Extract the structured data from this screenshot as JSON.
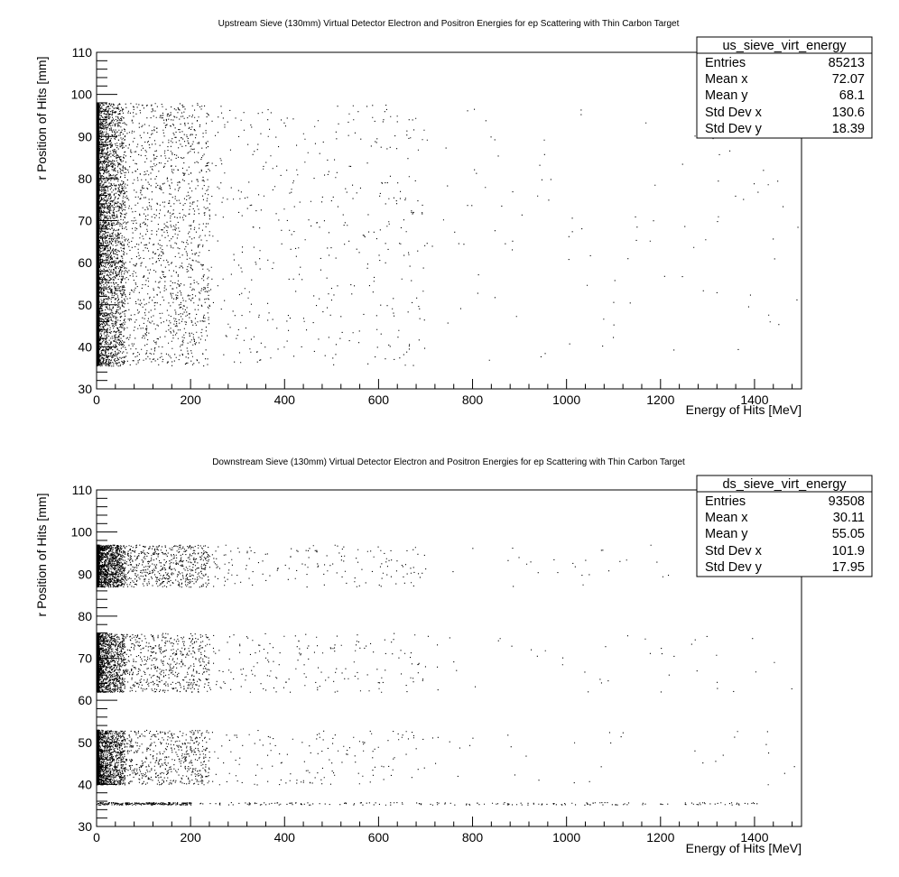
{
  "chart_data": [
    {
      "type": "scatter",
      "title": "Upstream Sieve (130mm) Virtual Detector Electron and Positron Energies for ep Scattering with Thin Carbon Target",
      "xlabel": "Energy of Hits [MeV]",
      "ylabel": "r Position of Hits [mm]",
      "xlim": [
        0,
        1500
      ],
      "ylim": [
        30,
        110
      ],
      "xticks": [
        0,
        200,
        400,
        600,
        800,
        1000,
        1200,
        1400
      ],
      "yticks": [
        30,
        40,
        50,
        60,
        70,
        80,
        90,
        100,
        110
      ],
      "xtick_labels": [
        "0",
        "200",
        "400",
        "600",
        "800",
        "1000",
        "1200",
        "1400"
      ],
      "ytick_labels": [
        "30",
        "40",
        "50",
        "60",
        "70",
        "80",
        "90",
        "100",
        "110"
      ],
      "grid": false,
      "series": [
        {
          "distribution": "r uniform between 35.5 and 98 mm; energy falling steeply from 0 MeV",
          "bands": [
            [
              35.5,
              98
            ]
          ]
        }
      ],
      "stats_box": {
        "name": "us_sieve_virt_energy",
        "placement": "top-right",
        "rows": [
          {
            "label": "Entries",
            "value": "85213"
          },
          {
            "label": "Mean x",
            "value": "72.07"
          },
          {
            "label": "Mean y",
            "value": "68.1"
          },
          {
            "label": "Std Dev x",
            "value": "130.6"
          },
          {
            "label": "Std Dev y",
            "value": "18.39"
          }
        ]
      }
    },
    {
      "type": "scatter",
      "title": "Downstream Sieve (130mm) Virtual Detector Electron and Positron Energies for ep Scattering with Thin Carbon Target",
      "xlabel": "Energy of Hits [MeV]",
      "ylabel": "r Position of Hits [mm]",
      "xlim": [
        0,
        1500
      ],
      "ylim": [
        30,
        110
      ],
      "xticks": [
        0,
        200,
        400,
        600,
        800,
        1000,
        1200,
        1400
      ],
      "yticks": [
        30,
        40,
        50,
        60,
        70,
        80,
        90,
        100,
        110
      ],
      "xtick_labels": [
        "0",
        "200",
        "400",
        "600",
        "800",
        "1000",
        "1200",
        "1400"
      ],
      "ytick_labels": [
        "30",
        "40",
        "50",
        "60",
        "70",
        "80",
        "90",
        "100",
        "110"
      ],
      "grid": false,
      "series": [
        {
          "distribution": "three r bands with energy falling steeply from 0 MeV, plus a thin line at r = 35.5 mm",
          "bands": [
            [
              40,
              53
            ],
            [
              62,
              76
            ],
            [
              87,
              97
            ]
          ],
          "line_r": 35.5
        }
      ],
      "stats_box": {
        "name": "ds_sieve_virt_energy",
        "placement": "top-right",
        "rows": [
          {
            "label": "Entries",
            "value": "93508"
          },
          {
            "label": "Mean x",
            "value": "30.11"
          },
          {
            "label": "Mean y",
            "value": "55.05"
          },
          {
            "label": "Std Dev x",
            "value": "101.9"
          },
          {
            "label": "Std Dev y",
            "value": "17.95"
          }
        ]
      }
    }
  ]
}
